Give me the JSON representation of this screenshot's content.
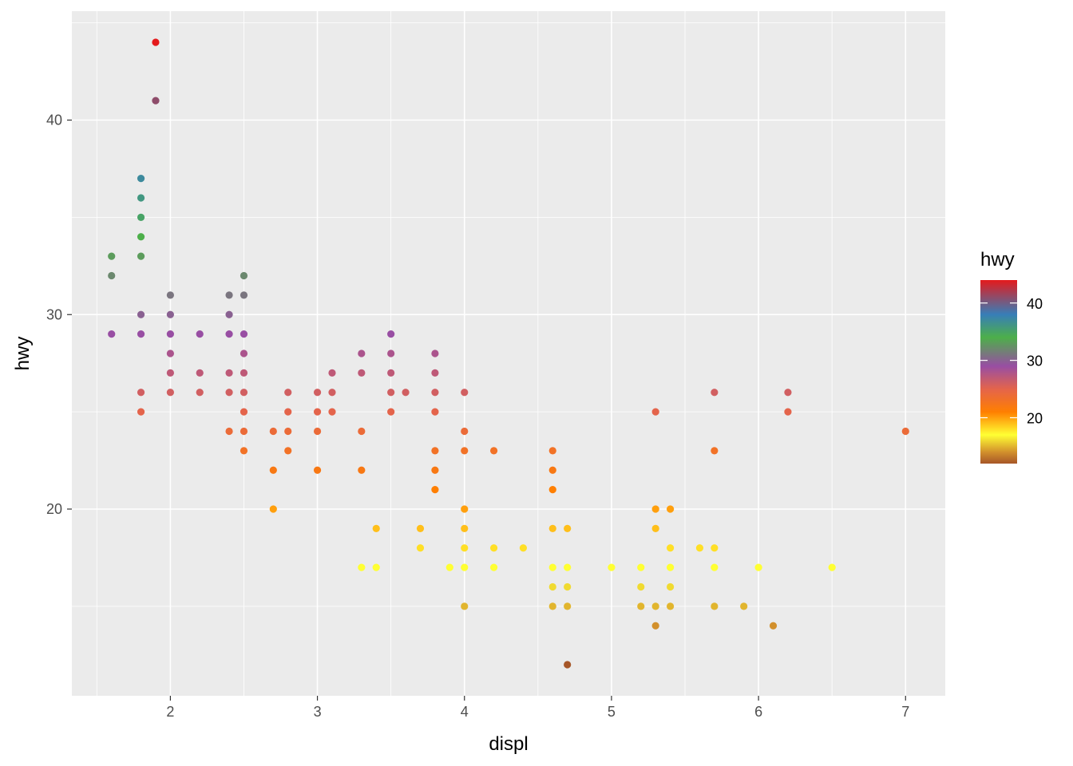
{
  "chart_data": {
    "type": "scatter",
    "title": "",
    "xlabel": "displ",
    "ylabel": "hwy",
    "xlim": [
      1.33,
      7.27
    ],
    "ylim": [
      10.4,
      45.6
    ],
    "x_ticks": [
      2,
      3,
      4,
      5,
      6,
      7
    ],
    "x_tick_labels": [
      "2",
      "3",
      "4",
      "5",
      "6",
      "7"
    ],
    "y_ticks": [
      20,
      30,
      40
    ],
    "y_tick_labels": [
      "20",
      "30",
      "40"
    ],
    "grid": true,
    "panel_background": "#ebebeb",
    "grid_color": "#ffffff",
    "color_by": "hwy",
    "legend": {
      "title": "hwy",
      "position": "right",
      "type": "colorbar",
      "range": [
        12,
        44
      ],
      "breaks": [
        20,
        30,
        40
      ],
      "break_labels": [
        "20",
        "30",
        "40"
      ]
    },
    "color_scale": [
      {
        "value": 12,
        "color": "#a65628"
      },
      {
        "value": 14,
        "color": "#d2902c"
      },
      {
        "value": 17,
        "color": "#ffff33"
      },
      {
        "value": 21,
        "color": "#ff7f00"
      },
      {
        "value": 25,
        "color": "#e4644b"
      },
      {
        "value": 29,
        "color": "#984ea3"
      },
      {
        "value": 34,
        "color": "#4daf4a"
      },
      {
        "value": 38,
        "color": "#377eb8"
      },
      {
        "value": 44,
        "color": "#e41a1c"
      }
    ],
    "points": [
      {
        "x": 1.6,
        "y": 33
      },
      {
        "x": 1.6,
        "y": 32
      },
      {
        "x": 1.6,
        "y": 29
      },
      {
        "x": 1.8,
        "y": 37
      },
      {
        "x": 1.8,
        "y": 36
      },
      {
        "x": 1.8,
        "y": 35
      },
      {
        "x": 1.8,
        "y": 34
      },
      {
        "x": 1.8,
        "y": 33
      },
      {
        "x": 1.8,
        "y": 30
      },
      {
        "x": 1.8,
        "y": 29
      },
      {
        "x": 1.8,
        "y": 26
      },
      {
        "x": 1.8,
        "y": 25
      },
      {
        "x": 1.9,
        "y": 44
      },
      {
        "x": 1.9,
        "y": 41
      },
      {
        "x": 2.0,
        "y": 31
      },
      {
        "x": 2.0,
        "y": 30
      },
      {
        "x": 2.0,
        "y": 29
      },
      {
        "x": 2.0,
        "y": 28
      },
      {
        "x": 2.0,
        "y": 27
      },
      {
        "x": 2.0,
        "y": 26
      },
      {
        "x": 2.2,
        "y": 29
      },
      {
        "x": 2.2,
        "y": 27
      },
      {
        "x": 2.2,
        "y": 26
      },
      {
        "x": 2.4,
        "y": 31
      },
      {
        "x": 2.4,
        "y": 30
      },
      {
        "x": 2.4,
        "y": 29
      },
      {
        "x": 2.4,
        "y": 27
      },
      {
        "x": 2.4,
        "y": 26
      },
      {
        "x": 2.4,
        "y": 24
      },
      {
        "x": 2.5,
        "y": 32
      },
      {
        "x": 2.5,
        "y": 31
      },
      {
        "x": 2.5,
        "y": 29
      },
      {
        "x": 2.5,
        "y": 28
      },
      {
        "x": 2.5,
        "y": 27
      },
      {
        "x": 2.5,
        "y": 26
      },
      {
        "x": 2.5,
        "y": 25
      },
      {
        "x": 2.5,
        "y": 24
      },
      {
        "x": 2.5,
        "y": 23
      },
      {
        "x": 2.7,
        "y": 24
      },
      {
        "x": 2.7,
        "y": 22
      },
      {
        "x": 2.7,
        "y": 20
      },
      {
        "x": 2.8,
        "y": 26
      },
      {
        "x": 2.8,
        "y": 25
      },
      {
        "x": 2.8,
        "y": 24
      },
      {
        "x": 2.8,
        "y": 23
      },
      {
        "x": 3.0,
        "y": 26
      },
      {
        "x": 3.0,
        "y": 25
      },
      {
        "x": 3.0,
        "y": 24
      },
      {
        "x": 3.0,
        "y": 22
      },
      {
        "x": 3.1,
        "y": 27
      },
      {
        "x": 3.1,
        "y": 26
      },
      {
        "x": 3.1,
        "y": 25
      },
      {
        "x": 3.3,
        "y": 28
      },
      {
        "x": 3.3,
        "y": 27
      },
      {
        "x": 3.3,
        "y": 24
      },
      {
        "x": 3.3,
        "y": 22
      },
      {
        "x": 3.3,
        "y": 17
      },
      {
        "x": 3.4,
        "y": 19
      },
      {
        "x": 3.4,
        "y": 17
      },
      {
        "x": 3.5,
        "y": 29
      },
      {
        "x": 3.5,
        "y": 28
      },
      {
        "x": 3.5,
        "y": 27
      },
      {
        "x": 3.5,
        "y": 26
      },
      {
        "x": 3.5,
        "y": 25
      },
      {
        "x": 3.6,
        "y": 26
      },
      {
        "x": 3.7,
        "y": 19
      },
      {
        "x": 3.7,
        "y": 18
      },
      {
        "x": 3.8,
        "y": 28
      },
      {
        "x": 3.8,
        "y": 27
      },
      {
        "x": 3.8,
        "y": 26
      },
      {
        "x": 3.8,
        "y": 25
      },
      {
        "x": 3.8,
        "y": 23
      },
      {
        "x": 3.8,
        "y": 22
      },
      {
        "x": 3.8,
        "y": 21
      },
      {
        "x": 3.9,
        "y": 17
      },
      {
        "x": 4.0,
        "y": 26
      },
      {
        "x": 4.0,
        "y": 24
      },
      {
        "x": 4.0,
        "y": 23
      },
      {
        "x": 4.0,
        "y": 20
      },
      {
        "x": 4.0,
        "y": 19
      },
      {
        "x": 4.0,
        "y": 18
      },
      {
        "x": 4.0,
        "y": 17
      },
      {
        "x": 4.0,
        "y": 15
      },
      {
        "x": 4.2,
        "y": 23
      },
      {
        "x": 4.2,
        "y": 18
      },
      {
        "x": 4.2,
        "y": 17
      },
      {
        "x": 4.4,
        "y": 18
      },
      {
        "x": 4.6,
        "y": 23
      },
      {
        "x": 4.6,
        "y": 22
      },
      {
        "x": 4.6,
        "y": 21
      },
      {
        "x": 4.6,
        "y": 19
      },
      {
        "x": 4.6,
        "y": 17
      },
      {
        "x": 4.6,
        "y": 16
      },
      {
        "x": 4.6,
        "y": 15
      },
      {
        "x": 4.7,
        "y": 19
      },
      {
        "x": 4.7,
        "y": 17
      },
      {
        "x": 4.7,
        "y": 16
      },
      {
        "x": 4.7,
        "y": 15
      },
      {
        "x": 4.7,
        "y": 12
      },
      {
        "x": 5.0,
        "y": 17
      },
      {
        "x": 5.2,
        "y": 17
      },
      {
        "x": 5.2,
        "y": 16
      },
      {
        "x": 5.2,
        "y": 15
      },
      {
        "x": 5.3,
        "y": 25
      },
      {
        "x": 5.3,
        "y": 20
      },
      {
        "x": 5.3,
        "y": 19
      },
      {
        "x": 5.3,
        "y": 15
      },
      {
        "x": 5.3,
        "y": 14
      },
      {
        "x": 5.4,
        "y": 20
      },
      {
        "x": 5.4,
        "y": 18
      },
      {
        "x": 5.4,
        "y": 17
      },
      {
        "x": 5.4,
        "y": 16
      },
      {
        "x": 5.4,
        "y": 15
      },
      {
        "x": 5.6,
        "y": 18
      },
      {
        "x": 5.7,
        "y": 26
      },
      {
        "x": 5.7,
        "y": 23
      },
      {
        "x": 5.7,
        "y": 18
      },
      {
        "x": 5.7,
        "y": 17
      },
      {
        "x": 5.7,
        "y": 15
      },
      {
        "x": 5.9,
        "y": 15
      },
      {
        "x": 6.0,
        "y": 17
      },
      {
        "x": 6.1,
        "y": 14
      },
      {
        "x": 6.2,
        "y": 26
      },
      {
        "x": 6.2,
        "y": 25
      },
      {
        "x": 6.5,
        "y": 17
      },
      {
        "x": 7.0,
        "y": 24
      }
    ]
  }
}
